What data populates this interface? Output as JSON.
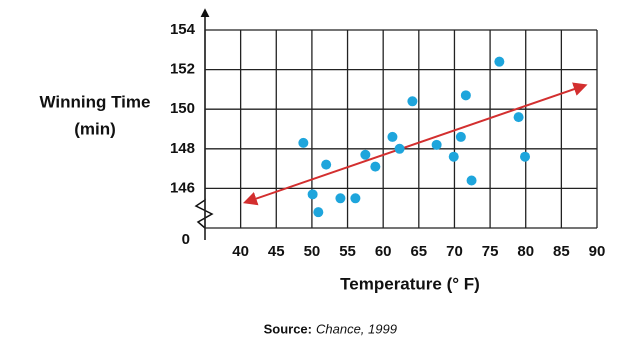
{
  "chart_data": {
    "type": "scatter",
    "y_label": [
      "Winning Time",
      "(min)"
    ],
    "x_label": "Temperature (° F)",
    "axis_break_label": "0",
    "source": {
      "label": "Source:",
      "text": "Chance, 1999"
    },
    "xlim": [
      35,
      90
    ],
    "xticks": [
      40,
      45,
      50,
      55,
      60,
      65,
      70,
      75,
      80,
      85,
      90
    ],
    "ylim": [
      144,
      154
    ],
    "yticks": [
      146,
      148,
      150,
      152,
      154
    ],
    "grid": true,
    "series": [
      {
        "color": "#1ea5dc",
        "x": [
          48.8,
          50.1,
          50.9,
          52.0,
          54.0,
          56.1,
          57.5,
          58.9,
          61.3,
          62.3,
          64.1,
          67.5,
          69.9,
          70.9,
          71.6,
          72.4,
          76.3,
          79.0,
          79.9
        ],
        "values": [
          148.3,
          145.7,
          144.8,
          147.2,
          145.5,
          145.5,
          147.7,
          147.1,
          148.6,
          148.0,
          150.4,
          148.2,
          147.6,
          148.6,
          150.7,
          146.4,
          152.4,
          149.6,
          147.6
        ]
      }
    ],
    "trend_line": {
      "color": "#d32f2f",
      "x": [
        40.7,
        88.3
      ],
      "values": [
        145.3,
        151.2
      ]
    }
  }
}
